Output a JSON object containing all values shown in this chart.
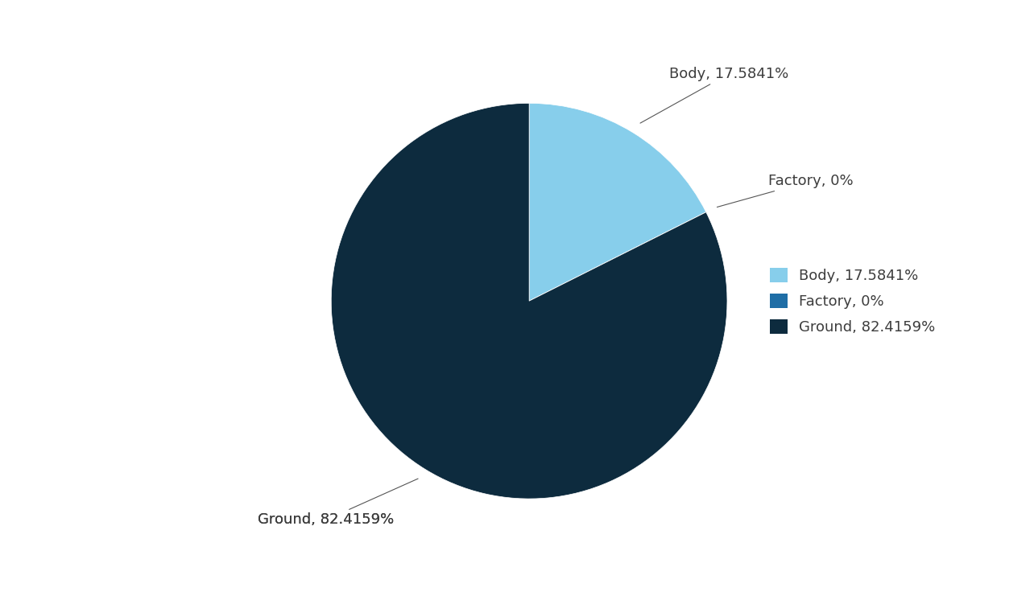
{
  "labels": [
    "Body",
    "Factory",
    "Ground"
  ],
  "values": [
    17.5841,
    0.0001,
    82.4159
  ],
  "display_pcts": [
    "17.5841%",
    "0%",
    "82.4159%"
  ],
  "colors": [
    "#87CEEB",
    "#1F6EA6",
    "#0D2B3E"
  ],
  "legend_labels": [
    "Body, 17.5841%",
    "Factory, 0%",
    "Ground, 82.4159%"
  ],
  "autopct_labels": [
    "Body, 17.5841%",
    "Factory, 0%",
    "Ground, 82.4159%"
  ],
  "background_color": "#ffffff",
  "text_color": "#3D3D3D",
  "startangle": 90,
  "font_size": 13
}
